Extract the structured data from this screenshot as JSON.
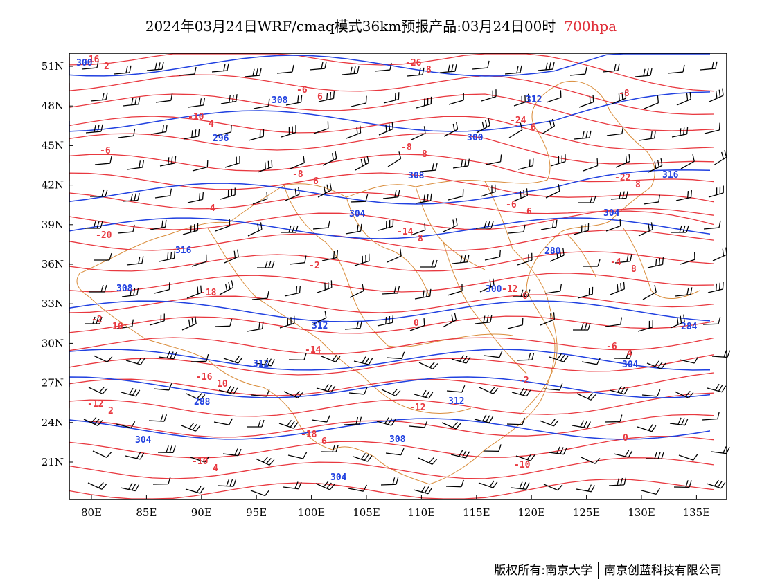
{
  "title": {
    "main": "2024年03月24日WRF/cmaq模式36km预报产品:03月24日00时",
    "level": "700hpa"
  },
  "colors": {
    "temperature": "#e8383f",
    "height": "#2040e0",
    "border": "#d98c3a",
    "wind": "#000000",
    "level": "#e0303a"
  },
  "axes": {
    "lat_labels": [
      "51N",
      "48N",
      "45N",
      "42N",
      "39N",
      "36N",
      "33N",
      "30N",
      "27N",
      "24N",
      "21N"
    ],
    "lon_labels": [
      "80E",
      "85E",
      "90E",
      "95E",
      "100E",
      "105E",
      "110E",
      "115E",
      "120E",
      "125E",
      "130E",
      "135E"
    ]
  },
  "temperature_labels": [
    "-16",
    "-10",
    "-8",
    "-14",
    "-12",
    "-6",
    "-12",
    "-10",
    "-6",
    "-8",
    "-6",
    "-4",
    "-2",
    "-16",
    "-18",
    "-26",
    "-24",
    "-22",
    "-20",
    "-18",
    "-14",
    "-12",
    "-10",
    "-8",
    "-6",
    "-4",
    "-2",
    "0",
    "-2",
    "0",
    "2",
    "4",
    "6",
    "8",
    "6",
    "4",
    "2",
    "4",
    "6",
    "8",
    "6",
    "8",
    "10",
    "10",
    "6",
    "8",
    "6",
    "8"
  ],
  "height_labels": [
    "300",
    "296",
    "304",
    "300",
    "304",
    "304",
    "308",
    "308",
    "280",
    "284",
    "288",
    "304",
    "300",
    "304",
    "308",
    "312",
    "308",
    "312",
    "316",
    "316",
    "312",
    "312"
  ],
  "footer": {
    "left": "版权所有:南京大学",
    "right": "南京创蓝科技有限公司"
  }
}
